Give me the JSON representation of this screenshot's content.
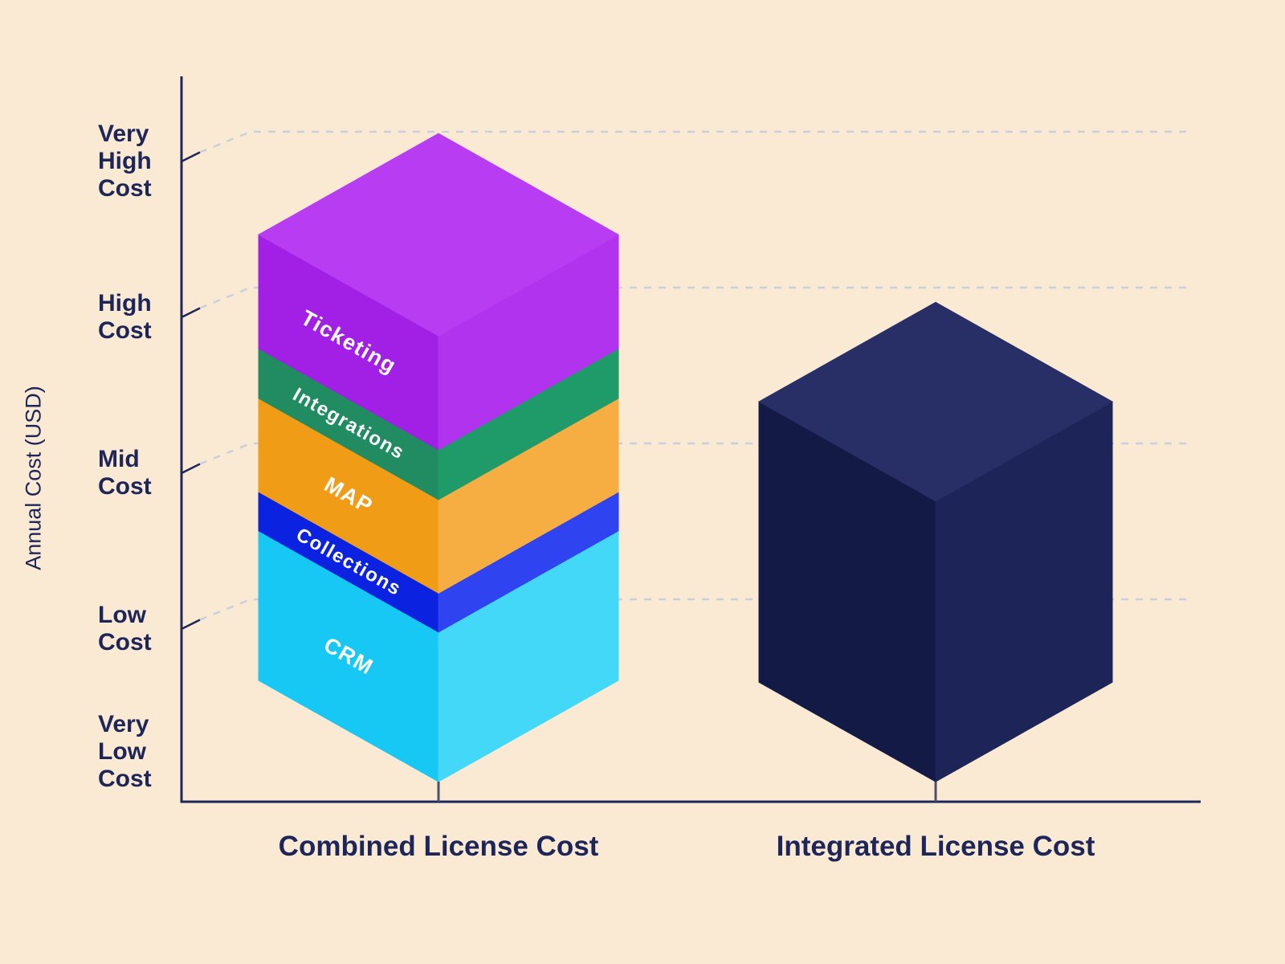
{
  "colors": {
    "background": "#FAEAD3",
    "text": "#1E2659",
    "axis": "#1E2659",
    "gridline": "#C9CFDC",
    "bar_base_tick": "#4A5065"
  },
  "y_axis": {
    "title": "Annual Cost (USD)",
    "ticks": [
      {
        "label": "Very\nHigh\nCost",
        "value": 4,
        "gridline": true
      },
      {
        "label": "High\nCost",
        "value": 3,
        "gridline": true
      },
      {
        "label": "Mid\nCost",
        "value": 2,
        "gridline": true
      },
      {
        "label": "Low\nCost",
        "value": 1,
        "gridline": true
      },
      {
        "label": "Very\nLow\nCost",
        "value": 0,
        "gridline": false
      }
    ]
  },
  "chart_data": {
    "type": "bar",
    "stacked": true,
    "title": "",
    "xlabel": "",
    "ylabel": "Annual Cost (USD)",
    "ylim": [
      0,
      4.5
    ],
    "grid": "dashed horizontal",
    "legend": "none (segments labeled on bar faces)",
    "axis_scale": {
      "Very Low Cost": 0,
      "Low Cost": 1,
      "Mid Cost": 2,
      "High Cost": 3,
      "Very High Cost": 4
    },
    "categories": [
      "Combined License Cost",
      "Integrated License Cost"
    ],
    "bars": [
      {
        "category": "Combined License Cost",
        "total": 2.86,
        "segments": [
          {
            "name": "CRM",
            "value": 0.96,
            "left": "#17C8F4",
            "right": "#44D8F8"
          },
          {
            "name": "Collections",
            "value": 0.25,
            "left": "#0B23E0",
            "right": "#2F43F0"
          },
          {
            "name": "MAP",
            "value": 0.6,
            "left": "#F09C16",
            "right": "#F6AE42"
          },
          {
            "name": "Integrations",
            "value": 0.32,
            "left": "#218B61",
            "right": "#1F9B6A"
          },
          {
            "name": "Ticketing",
            "value": 0.73,
            "left": "#A21FE5",
            "right": "#B133EE",
            "top": "#B83DF2"
          }
        ]
      },
      {
        "category": "Integrated License Cost",
        "total": 1.8,
        "segments": [
          {
            "name": "",
            "value": 1.8,
            "left": "#131A45",
            "right": "#1D2558",
            "top": "#272F66"
          }
        ]
      }
    ]
  }
}
